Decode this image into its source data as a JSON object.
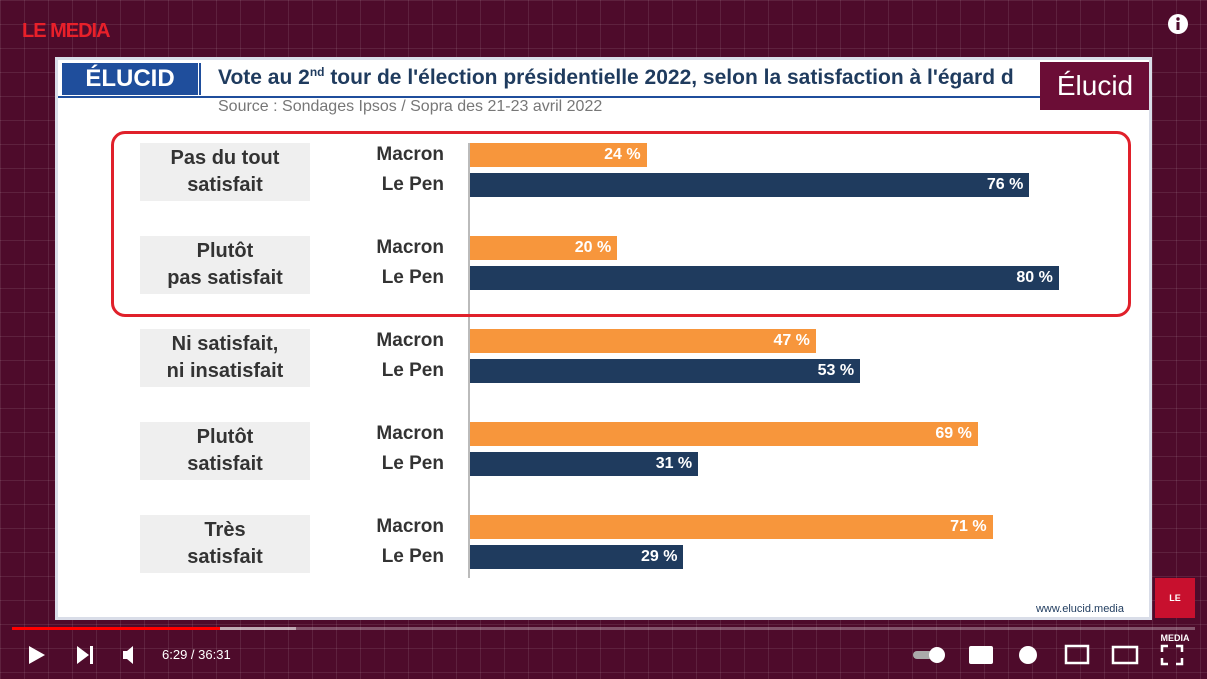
{
  "player": {
    "channel_logo": "LE MEDIA",
    "time": "6:29 / 36:31"
  },
  "header": {
    "logo": "ÉLUCID",
    "title_start": "Vote au 2",
    "title_sup": "nd",
    "title_end": " tour de l'élection présidentielle 2022, selon la satisfaction à l'égard d",
    "badge": "Élucid",
    "source": "Source : Sondages Ipsos / Sopra des 21-23 avril 2022",
    "footer": "www.elucid.media"
  },
  "chart_data": {
    "type": "bar",
    "orientation": "horizontal",
    "categories": [
      "Pas du tout\nsatisfait",
      "Plutôt\npas satisfait",
      "Ni satisfait,\nni insatisfait",
      "Plutôt\nsatisfait",
      "Très\nsatisfait"
    ],
    "series": [
      {
        "name": "Macron",
        "color": "#f7963c",
        "values": [
          24,
          20,
          47,
          69,
          71
        ],
        "value_labels": [
          "24 %",
          "20 %",
          "47 %",
          "69 %",
          "71 %"
        ]
      },
      {
        "name": "Le Pen",
        "color": "#1f3b5e",
        "values": [
          76,
          80,
          53,
          31,
          29
        ],
        "value_labels": [
          "76 %",
          "80 %",
          "53 %",
          "31 %",
          "29 %"
        ]
      }
    ]
  }
}
